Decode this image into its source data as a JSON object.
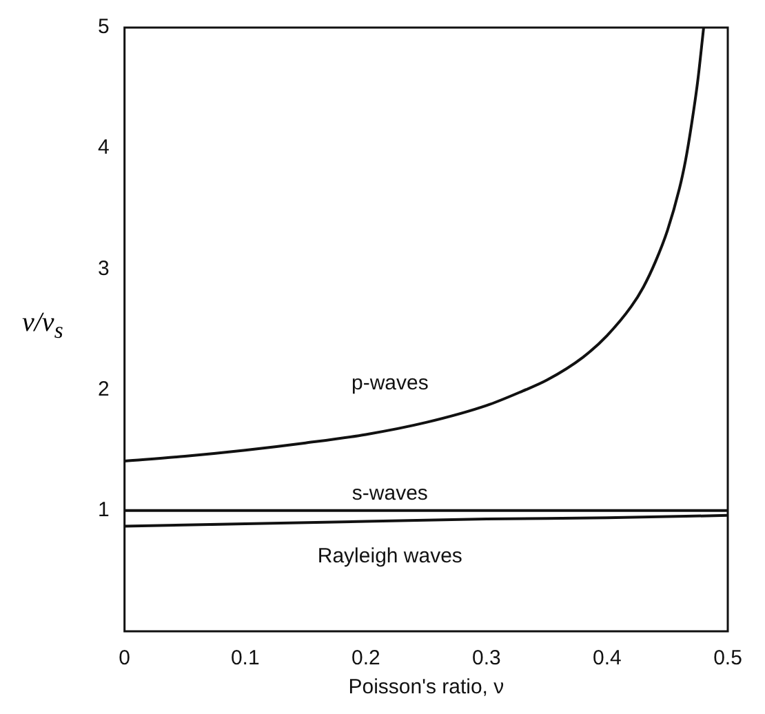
{
  "chart_data": {
    "type": "line",
    "xlabel": "Poisson's ratio, ν",
    "ylabel": "v/v$_{s}$",
    "xlim": [
      0,
      0.5
    ],
    "xticks": [
      0,
      0.1,
      0.2,
      0.3,
      0.4,
      0.5
    ],
    "ylim": [
      0,
      5
    ],
    "yticks": [
      1,
      2,
      3,
      4,
      5
    ],
    "grid": false,
    "legend": false,
    "marker": "none",
    "line_style": "solid",
    "series": [
      {
        "name": "p-waves",
        "color": "#111111",
        "x": [
          0,
          0.05,
          0.1,
          0.15,
          0.2,
          0.25,
          0.3,
          0.33,
          0.35,
          0.38,
          0.4,
          0.42,
          0.43,
          0.44,
          0.45,
          0.46,
          0.465,
          0.47,
          0.475,
          0.48
        ],
        "values": [
          1.41,
          1.45,
          1.5,
          1.56,
          1.63,
          1.73,
          1.87,
          1.99,
          2.08,
          2.27,
          2.45,
          2.69,
          2.85,
          3.06,
          3.32,
          3.67,
          3.9,
          4.2,
          4.55,
          5.0
        ]
      },
      {
        "name": "s-waves",
        "color": "#111111",
        "x": [
          0,
          0.5
        ],
        "values": [
          1,
          1
        ]
      },
      {
        "name": "Rayleigh waves",
        "color": "#111111",
        "x": [
          0,
          0.1,
          0.2,
          0.3,
          0.4,
          0.5
        ],
        "values": [
          0.87,
          0.89,
          0.91,
          0.93,
          0.94,
          0.96
        ]
      }
    ]
  }
}
